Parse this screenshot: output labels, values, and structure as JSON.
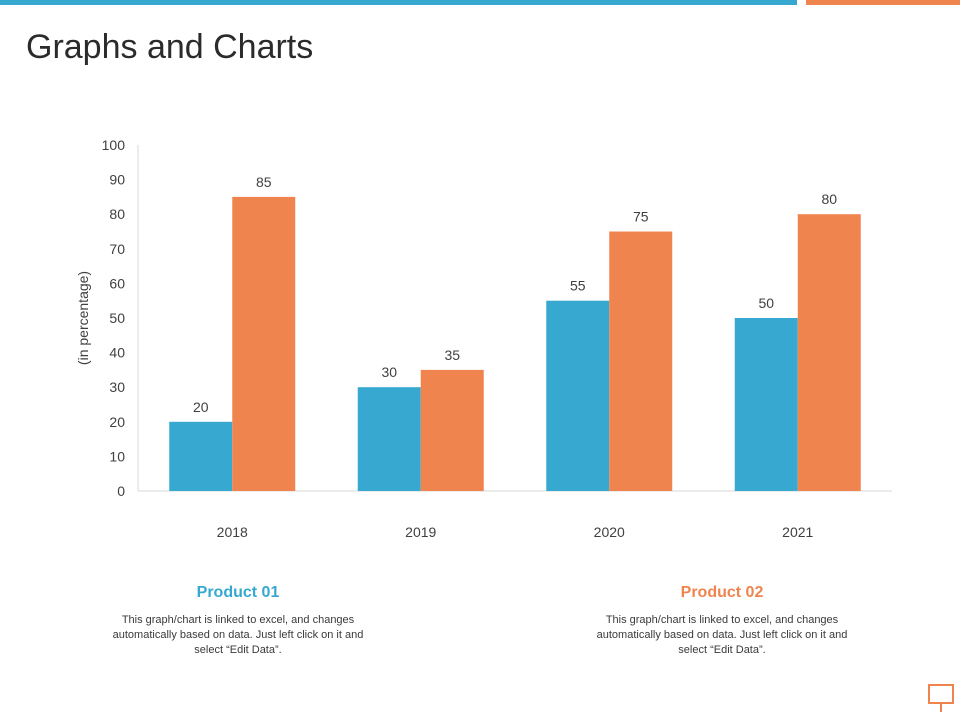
{
  "page": {
    "title": "Graphs and Charts",
    "accent_blue": "#37a8cf",
    "accent_orange": "#f0844f"
  },
  "chart_data": {
    "type": "bar",
    "title": "",
    "xlabel": "",
    "ylabel": "(in percentage)",
    "ylim": [
      0,
      100
    ],
    "yticks": [
      0,
      10,
      20,
      30,
      40,
      50,
      60,
      70,
      80,
      90,
      100
    ],
    "grid": false,
    "categories": [
      "2018",
      "2019",
      "2020",
      "2021"
    ],
    "series": [
      {
        "name": "Product 01",
        "color": "#37a8cf",
        "values": [
          20,
          30,
          55,
          50
        ]
      },
      {
        "name": "Product 02",
        "color": "#f0844f",
        "values": [
          85,
          35,
          75,
          80
        ]
      }
    ]
  },
  "legend": [
    {
      "name": "Product 01",
      "description": "This graph/chart is linked to excel, and changes automatically based on data. Just left click on it and select “Edit Data”."
    },
    {
      "name": "Product 02",
      "description": "This graph/chart is linked to excel, and changes automatically based on data. Just left click on it and select “Edit Data”."
    }
  ],
  "footer": {
    "icon": "presentation-board-icon"
  }
}
